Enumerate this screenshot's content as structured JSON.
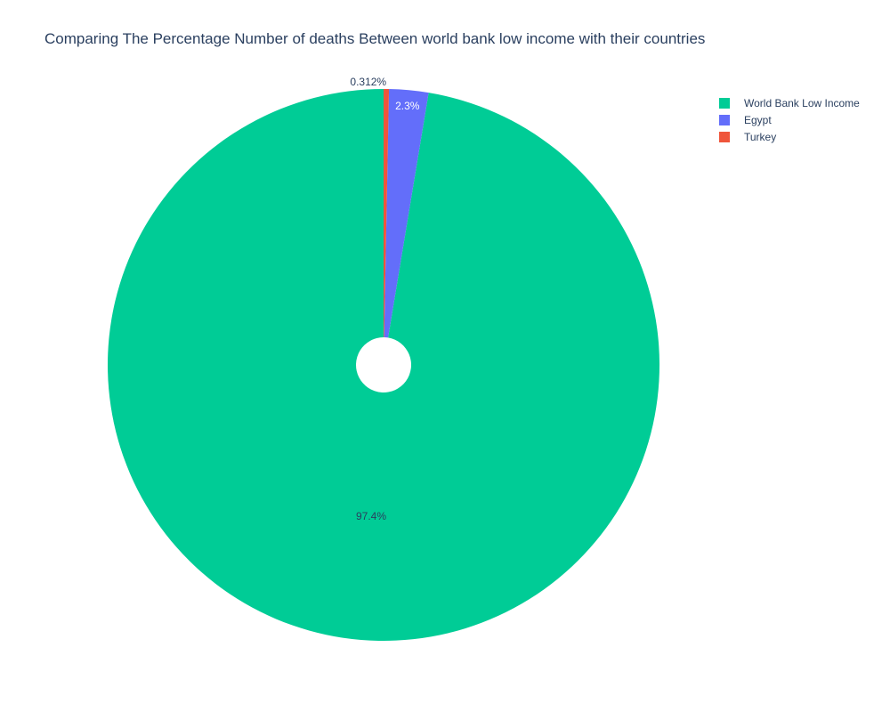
{
  "chart_data": {
    "type": "pie",
    "title": "Comparing The Percentage Number of deaths Between world bank low income with their countries",
    "hole": true,
    "direction": "counterclockwise",
    "start": "top",
    "slices": [
      {
        "name": "World Bank Low Income",
        "percent": 97.4,
        "label": "97.4%",
        "color": "#00cc96",
        "text_color": "#2a3f5f"
      },
      {
        "name": "Egypt",
        "percent": 2.3,
        "label": "2.3%",
        "color": "#636efa",
        "text_color": "#ffffff"
      },
      {
        "name": "Turkey",
        "percent": 0.312,
        "label": "0.312%",
        "color": "#ef553b",
        "text_color": "#2a3f5f"
      }
    ],
    "legend": {
      "placement": "top-right",
      "entries": [
        "World Bank Low Income",
        "Egypt",
        "Turkey"
      ]
    }
  }
}
